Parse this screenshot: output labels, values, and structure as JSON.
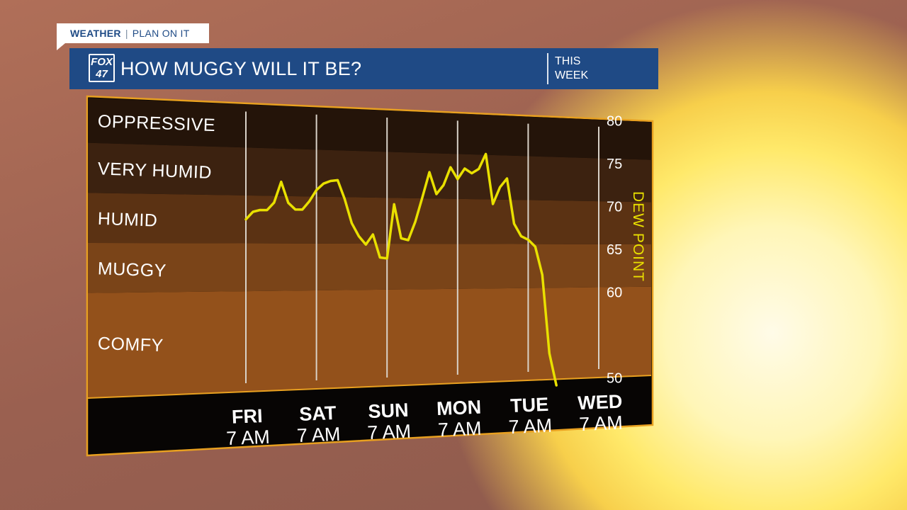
{
  "branding": {
    "section": "WEATHER",
    "tagline": "PLAN ON IT"
  },
  "header": {
    "logo_top": "FOX",
    "logo_bottom": "47",
    "title": "HOW MUGGY WILL IT BE?",
    "period_line1": "THIS",
    "period_line2": "WEEK"
  },
  "colors": {
    "title_bar": "#1f4a85",
    "chart_border": "#e8a020",
    "line": "#e9e000",
    "band_oppressive": "#241409",
    "band_very_humid": "#3c2210",
    "band_humid": "#5b3213",
    "band_muggy": "#7a4418",
    "band_comfy": "#93511b"
  },
  "chart_data": {
    "type": "line",
    "title": "HOW MUGGY WILL IT BE?",
    "ylabel": "DEW POINT",
    "ylim": [
      50,
      80
    ],
    "yticks": [
      80,
      75,
      70,
      65,
      60,
      50
    ],
    "categories": [
      {
        "day": "FRI",
        "hour": "7 AM"
      },
      {
        "day": "SAT",
        "hour": "7 AM"
      },
      {
        "day": "SUN",
        "hour": "7 AM"
      },
      {
        "day": "MON",
        "hour": "7 AM"
      },
      {
        "day": "TUE",
        "hour": "7 AM"
      },
      {
        "day": "WED",
        "hour": "7 AM"
      }
    ],
    "bands": [
      {
        "label": "OPPRESSIVE",
        "from": 75.5,
        "to": 80
      },
      {
        "label": "VERY HUMID",
        "from": 70.5,
        "to": 75.5
      },
      {
        "label": "HUMID",
        "from": 65.5,
        "to": 70.5
      },
      {
        "label": "MUGGY",
        "from": 60.5,
        "to": 65.5
      },
      {
        "label": "COMFY",
        "from": 50,
        "to": 60.5
      }
    ],
    "series": [
      {
        "x": [
          0,
          0.1,
          0.2,
          0.3,
          0.4,
          0.5,
          0.6,
          0.7,
          0.8,
          0.9,
          1.0,
          1.1,
          1.2,
          1.3,
          1.4,
          1.5,
          1.6,
          1.7,
          1.8,
          1.9,
          2.0,
          2.1,
          2.2,
          2.3,
          2.4,
          2.5,
          2.6,
          2.7,
          2.8,
          2.9,
          3.0,
          3.1,
          3.2,
          3.3,
          3.4,
          3.5,
          3.6,
          3.7,
          3.8,
          3.9,
          4.0,
          4.1,
          4.2,
          4.3,
          4.4,
          4.5,
          4.6,
          4.7,
          4.8,
          4.9,
          5.0
        ],
        "values": [
          68.0,
          68.8,
          69.0,
          69.0,
          69.8,
          72.0,
          69.8,
          69.1,
          69.1,
          70.0,
          71.2,
          71.9,
          72.2,
          72.3,
          70.3,
          67.7,
          66.3,
          65.4,
          66.5,
          64.0,
          63.9,
          69.8,
          66.1,
          65.9,
          67.9,
          70.6,
          73.4,
          71.0,
          72.0,
          74.0,
          72.7,
          73.9,
          73.4,
          73.9,
          75.6,
          70.0,
          71.9,
          72.9,
          67.8,
          66.4,
          66.0,
          65.2,
          62.0,
          53.0,
          49.3,
          null,
          null,
          null,
          null,
          null,
          null
        ]
      }
    ]
  }
}
